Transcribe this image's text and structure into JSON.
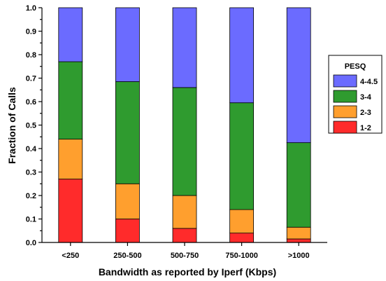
{
  "chart_data": {
    "type": "bar",
    "stacked": true,
    "title": "",
    "xlabel": "Bandwidth as reported by Iperf (Kbps)",
    "ylabel": "Fraction of Calls",
    "ylim": [
      0,
      1.0
    ],
    "yticks": [
      0.0,
      0.1,
      0.2,
      0.3,
      0.4,
      0.5,
      0.6,
      0.7,
      0.8,
      0.9,
      1.0
    ],
    "ytick_labels": [
      "0.0",
      "0.1",
      "0.2",
      "0.3",
      "0.4",
      "0.5",
      "0.6",
      "0.7",
      "0.8",
      "0.9",
      "1.0"
    ],
    "categories": [
      "<250",
      "250-500",
      "500-750",
      "750-1000",
      ">1000"
    ],
    "legend": {
      "title": "PESQ",
      "placement": "right",
      "order": [
        "4-4.5",
        "3-4",
        "2-3",
        "1-2"
      ]
    },
    "series": [
      {
        "name": "1-2",
        "color": "#ff2b2b",
        "values": [
          0.27,
          0.1,
          0.06,
          0.04,
          0.015
        ]
      },
      {
        "name": "2-3",
        "color": "#ff9f2e",
        "values": [
          0.17,
          0.15,
          0.14,
          0.1,
          0.05
        ]
      },
      {
        "name": "3-4",
        "color": "#2f9b2f",
        "values": [
          0.33,
          0.435,
          0.46,
          0.455,
          0.36
        ]
      },
      {
        "name": "4-4.5",
        "color": "#6b6bff",
        "values": [
          0.23,
          0.315,
          0.34,
          0.405,
          0.575
        ]
      }
    ]
  }
}
